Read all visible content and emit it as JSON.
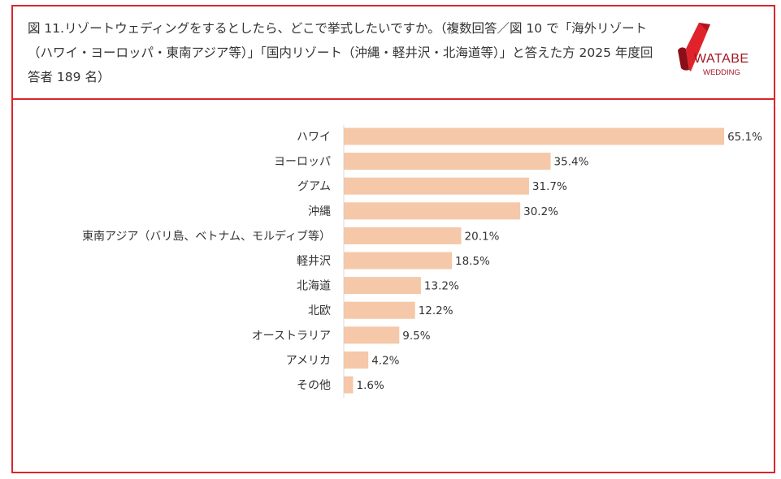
{
  "header": {
    "title": "図 11.リゾートウェディングをするとしたら、どこで挙式したいですか。（複数回答／図 10 で「海外リゾート（ハワイ・ヨーロッパ・東南アジア等）」「国内リゾート（沖縄・軽井沢・北海道等）」と答えた方 2025 年度回答者 189 名）",
    "logo_text": "WATABE",
    "logo_subtext": "WEDDING"
  },
  "colors": {
    "bar": "#f4c8a8",
    "border": "#d9262b",
    "brand": "#a01620"
  },
  "chart_data": {
    "type": "bar",
    "orientation": "horizontal",
    "categories": [
      "ハワイ",
      "ヨーロッパ",
      "グアム",
      "沖縄",
      "東南アジア（バリ島、ベトナム、モルディブ等）",
      "軽井沢",
      "北海道",
      "北欧",
      "オーストラリア",
      "アメリカ",
      "その他"
    ],
    "values": [
      65.1,
      35.4,
      31.7,
      30.2,
      20.1,
      18.5,
      13.2,
      12.2,
      9.5,
      4.2,
      1.6
    ],
    "data_labels": [
      "65.1%",
      "35.4%",
      "31.7%",
      "30.2%",
      "20.1%",
      "18.5%",
      "13.2%",
      "12.2%",
      "9.5%",
      "4.2%",
      "1.6%"
    ],
    "unit": "%",
    "grid": false,
    "legend": "none"
  }
}
